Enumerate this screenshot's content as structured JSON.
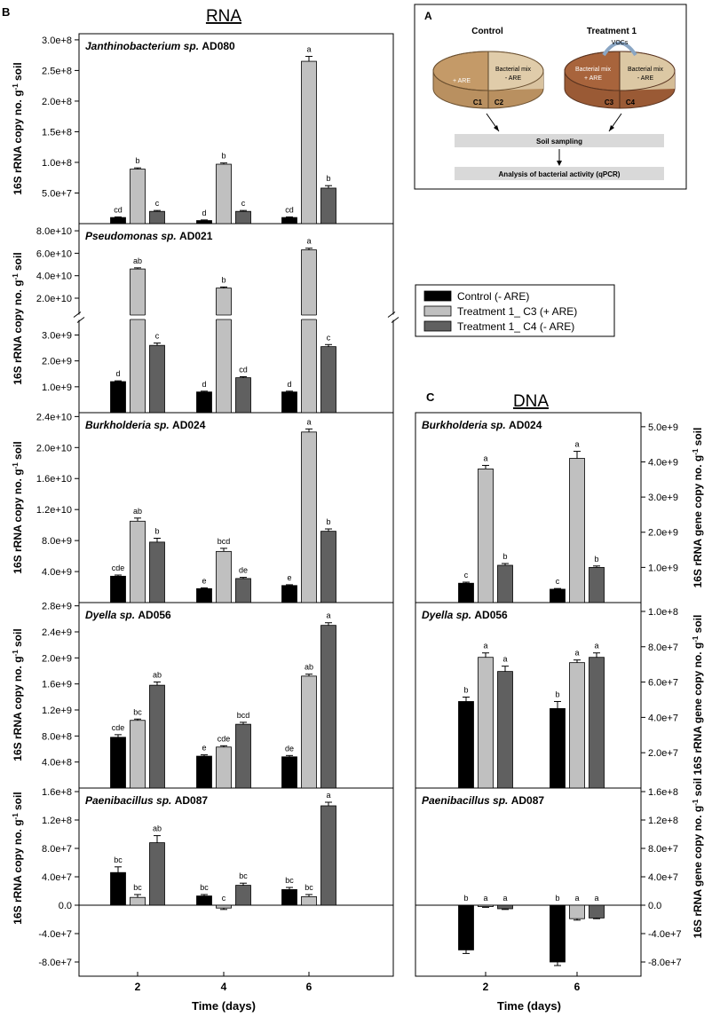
{
  "figure": {
    "panel_b_letter": "B",
    "panel_a_letter": "A",
    "panel_c_letter": "C",
    "rna_title": "RNA",
    "dna_title": "DNA",
    "x_label": "Time (days)",
    "ylabel_rna_prefix": "16S rRNA copy no. g",
    "ylabel_dna_prefix": "16S rRNA gene copy no. g",
    "ylabel_sup": "-1",
    "ylabel_suffix": " soil"
  },
  "legend": {
    "items": [
      {
        "label": "Control (- ARE)",
        "color": "#000000"
      },
      {
        "label": "Treatment 1_ C3 (+ ARE)",
        "color": "#c0c0c0"
      },
      {
        "label": "Treatment 1_ C4 (- ARE)",
        "color": "#606060"
      }
    ]
  },
  "diagram": {
    "control_title": "Control",
    "treatment_title": "Treatment 1",
    "vocs_label": "VOCs",
    "c1_label": "C1",
    "c2_label": "C2",
    "c3_label": "C3",
    "c4_label": "C4",
    "plus_are": "+ ARE",
    "bacterial_mix": "Bacterial mix",
    "minus_are": "- ARE",
    "soil_sampling": "Soil sampling",
    "analysis": "Analysis of bacterial activity (qPCR)"
  },
  "chart_data": [
    {
      "type": "bar",
      "panel": "RNA",
      "organism": "Janthinobacterium sp.",
      "strain": "AD080",
      "categories": [
        "2",
        "4",
        "6"
      ],
      "ylim": [
        0,
        310000000.0
      ],
      "yticks": [
        50000000.0,
        100000000.0,
        150000000.0,
        200000000.0,
        250000000.0,
        300000000.0
      ],
      "ytick_labels": [
        "5.0e+7",
        "1.0e+8",
        "1.5e+8",
        "2.0e+8",
        "2.5e+8",
        "3.0e+8"
      ],
      "series": [
        {
          "name": "Control (- ARE)",
          "values": [
            10000000.0,
            5000000.0,
            10000000.0
          ],
          "errors": [
            1000000.0,
            1000000.0,
            1000000.0
          ],
          "letters": [
            "cd",
            "d",
            "cd"
          ]
        },
        {
          "name": "Treatment 1_ C3 (+ ARE)",
          "values": [
            89000000.0,
            97000000.0,
            265000000.0
          ],
          "errors": [
            2000000.0,
            2000000.0,
            8000000.0
          ],
          "letters": [
            "b",
            "b",
            "a"
          ]
        },
        {
          "name": "Treatment 1_ C4 (- ARE)",
          "values": [
            20000000.0,
            20000000.0,
            58000000.0
          ],
          "errors": [
            1500000.0,
            1500000.0,
            4000000.0
          ],
          "letters": [
            "c",
            "c",
            "b"
          ]
        }
      ]
    },
    {
      "type": "bar",
      "panel": "RNA",
      "organism": "Pseudomonas sp.",
      "strain": "AD021",
      "categories": [
        "2",
        "4",
        "6"
      ],
      "broken_axis": true,
      "lower_range": [
        0,
        3600000000.0
      ],
      "upper_range": [
        5000000000.0,
        84000000000.0
      ],
      "lower_ticks": [
        1000000000.0,
        2000000000.0,
        3000000000.0
      ],
      "lower_tick_labels": [
        "1.0e+9",
        "2.0e+9",
        "3.0e+9"
      ],
      "upper_ticks": [
        20000000000.0,
        40000000000.0,
        60000000000.0,
        80000000000.0
      ],
      "upper_tick_labels": [
        "2.0e+10",
        "4.0e+10",
        "6.0e+10",
        "8.0e+10"
      ],
      "series": [
        {
          "name": "Control (- ARE)",
          "values": [
            1200000000.0,
            800000000.0,
            800000000.0
          ],
          "errors": [
            30000000.0,
            30000000.0,
            30000000.0
          ],
          "letters": [
            "d",
            "d",
            "d"
          ]
        },
        {
          "name": "Treatment 1_ C3 (+ ARE)",
          "values": [
            46000000000.0,
            29000000000.0,
            63000000000.0
          ],
          "errors": [
            1000000000.0,
            1000000000.0,
            1500000000.0
          ],
          "letters": [
            "ab",
            "b",
            "a"
          ]
        },
        {
          "name": "Treatment 1_ C4 (- ARE)",
          "values": [
            2600000000.0,
            1350000000.0,
            2550000000.0
          ],
          "errors": [
            90000000.0,
            40000000.0,
            80000000.0
          ],
          "letters": [
            "c",
            "cd",
            "c"
          ]
        }
      ]
    },
    {
      "type": "bar",
      "panel": "RNA",
      "organism": "Burkholderia sp.",
      "strain": "AD024",
      "categories": [
        "2",
        "4",
        "6"
      ],
      "ylim": [
        0,
        24500000000.0
      ],
      "yticks": [
        4000000000.0,
        8000000000.0,
        12000000000.0,
        16000000000.0,
        20000000000.0,
        24000000000.0
      ],
      "ytick_labels": [
        "4.0e+9",
        "8.0e+9",
        "1.2e+10",
        "1.6e+10",
        "2.0e+10",
        "2.4e+10"
      ],
      "series": [
        {
          "name": "Control (- ARE)",
          "values": [
            3400000000.0,
            1800000000.0,
            2200000000.0
          ],
          "errors": [
            150000000.0,
            100000000.0,
            100000000.0
          ],
          "letters": [
            "cde",
            "e",
            "e"
          ]
        },
        {
          "name": "Treatment 1_ C3 (+ ARE)",
          "values": [
            10500000000.0,
            6600000000.0,
            22000000000.0
          ],
          "errors": [
            400000000.0,
            400000000.0,
            400000000.0
          ],
          "letters": [
            "ab",
            "bcd",
            "a"
          ]
        },
        {
          "name": "Treatment 1_ C4 (- ARE)",
          "values": [
            7800000000.0,
            3100000000.0,
            9200000000.0
          ],
          "errors": [
            500000000.0,
            150000000.0,
            300000000.0
          ],
          "letters": [
            "b",
            "de",
            "b"
          ]
        }
      ]
    },
    {
      "type": "bar",
      "panel": "RNA",
      "organism": "Dyella sp.",
      "strain": "AD056",
      "categories": [
        "2",
        "4",
        "6"
      ],
      "ylim": [
        0,
        2850000000.0
      ],
      "yticks": [
        400000000.0,
        800000000.0,
        1200000000.0,
        1600000000.0,
        2000000000.0,
        2400000000.0,
        2800000000.0
      ],
      "ytick_labels": [
        "4.0e+8",
        "8.0e+8",
        "1.2e+9",
        "1.6e+9",
        "2.0e+9",
        "2.4e+9",
        "2.8e+9"
      ],
      "series": [
        {
          "name": "Control (- ARE)",
          "values": [
            780000000.0,
            490000000.0,
            480000000.0
          ],
          "errors": [
            40000000.0,
            20000000.0,
            20000000.0
          ],
          "letters": [
            "cde",
            "e",
            "de"
          ]
        },
        {
          "name": "Treatment 1_ C3 (+ ARE)",
          "values": [
            1040000000.0,
            630000000.0,
            1720000000.0
          ],
          "errors": [
            20000000.0,
            20000000.0,
            30000000.0
          ],
          "letters": [
            "bc",
            "cde",
            "ab"
          ]
        },
        {
          "name": "Treatment 1_ C4 (- ARE)",
          "values": [
            1580000000.0,
            980000000.0,
            2500000000.0
          ],
          "errors": [
            50000000.0,
            30000000.0,
            40000000.0
          ],
          "letters": [
            "ab",
            "bcd",
            "a"
          ]
        }
      ]
    },
    {
      "type": "bar",
      "panel": "RNA",
      "organism": "Paenibacillus sp.",
      "strain": "AD087",
      "categories": [
        "2",
        "4",
        "6"
      ],
      "ylim": [
        -100000000.0,
        165000000.0
      ],
      "yticks": [
        -80000000.0,
        -40000000.0,
        0,
        40000000.0,
        80000000.0,
        120000000.0,
        160000000.0
      ],
      "ytick_labels": [
        "-8.0e+7",
        "-4.0e+7",
        "0.0",
        "4.0e+7",
        "8.0e+7",
        "1.2e+8",
        "1.6e+8"
      ],
      "series": [
        {
          "name": "Control (- ARE)",
          "values": [
            46000000.0,
            13000000.0,
            22000000.0
          ],
          "errors": [
            8000000.0,
            2000000.0,
            3000000.0
          ],
          "letters": [
            "bc",
            "bc",
            "bc"
          ]
        },
        {
          "name": "Treatment 1_ C3 (+ ARE)",
          "values": [
            11000000.0,
            -4000000.0,
            12000000.0
          ],
          "errors": [
            4000000.0,
            2000000.0,
            3000000.0
          ],
          "letters": [
            "bc",
            "c",
            "bc"
          ]
        },
        {
          "name": "Treatment 1_ C4 (- ARE)",
          "values": [
            88000000.0,
            28000000.0,
            140000000.0
          ],
          "errors": [
            10000000.0,
            3000000.0,
            5000000.0
          ],
          "letters": [
            "ab",
            "bc",
            "a"
          ]
        }
      ]
    },
    {
      "type": "bar",
      "panel": "DNA",
      "organism": "Burkholderia sp.",
      "strain": "AD024",
      "categories": [
        "2",
        "6"
      ],
      "ylim": [
        0,
        5400000000.0
      ],
      "yticks": [
        1000000000.0,
        2000000000.0,
        3000000000.0,
        4000000000.0,
        5000000000.0
      ],
      "ytick_labels": [
        "1.0e+9",
        "2.0e+9",
        "3.0e+9",
        "4.0e+9",
        "5.0e+9"
      ],
      "series": [
        {
          "name": "Control (- ARE)",
          "values": [
            550000000.0,
            380000000.0
          ],
          "errors": [
            30000000.0,
            20000000.0
          ],
          "letters": [
            "c",
            "c"
          ]
        },
        {
          "name": "Treatment 1_ C3 (+ ARE)",
          "values": [
            3800000000.0,
            4100000000.0
          ],
          "errors": [
            100000000.0,
            200000000.0
          ],
          "letters": [
            "a",
            "a"
          ]
        },
        {
          "name": "Treatment 1_ C4 (- ARE)",
          "values": [
            1060000000.0,
            1000000000.0
          ],
          "errors": [
            50000000.0,
            40000000.0
          ],
          "letters": [
            "b",
            "b"
          ]
        }
      ]
    },
    {
      "type": "bar",
      "panel": "DNA",
      "organism": "Dyella sp.",
      "strain": "AD056",
      "categories": [
        "2",
        "6"
      ],
      "ylim": [
        0,
        105000000.0
      ],
      "yticks": [
        20000000.0,
        40000000.0,
        60000000.0,
        80000000.0,
        100000000.0
      ],
      "ytick_labels": [
        "2.0e+7",
        "4.0e+7",
        "6.0e+7",
        "8.0e+7",
        "1.0e+8"
      ],
      "series": [
        {
          "name": "Control (- ARE)",
          "values": [
            49000000.0,
            45000000.0
          ],
          "errors": [
            2500000.0,
            4000000.0
          ],
          "letters": [
            "b",
            "b"
          ]
        },
        {
          "name": "Treatment 1_ C3 (+ ARE)",
          "values": [
            74000000.0,
            71000000.0
          ],
          "errors": [
            2500000.0,
            1500000.0
          ],
          "letters": [
            "a",
            "a"
          ]
        },
        {
          "name": "Treatment 1_ C4 (- ARE)",
          "values": [
            66000000.0,
            74000000.0
          ],
          "errors": [
            3000000.0,
            2500000.0
          ],
          "letters": [
            "a",
            "a"
          ]
        }
      ]
    },
    {
      "type": "bar",
      "panel": "DNA",
      "organism": "Paenibacillus sp.",
      "strain": "AD087",
      "categories": [
        "2",
        "6"
      ],
      "ylim": [
        -100000000.0,
        165000000.0
      ],
      "yticks": [
        -80000000.0,
        -40000000.0,
        0,
        40000000.0,
        80000000.0,
        120000000.0,
        160000000.0
      ],
      "ytick_labels": [
        "-8.0e+7",
        "-4.0e+7",
        "0.0",
        "4.0e+7",
        "8.0e+7",
        "1.2e+8",
        "1.6e+8"
      ],
      "series": [
        {
          "name": "Control (- ARE)",
          "values": [
            -63000000.0,
            -80000000.0
          ],
          "errors": [
            5000000.0,
            5000000.0
          ],
          "letters": [
            "b",
            "b"
          ]
        },
        {
          "name": "Treatment 1_ C3 (+ ARE)",
          "values": [
            -2000000.0,
            -19000000.0
          ],
          "errors": [
            1000000.0,
            2000000.0
          ],
          "letters": [
            "a",
            "a"
          ]
        },
        {
          "name": "Treatment 1_ C4 (- ARE)",
          "values": [
            -5000000.0,
            -18000000.0
          ],
          "errors": [
            1000000.0,
            1000000.0
          ],
          "letters": [
            "a",
            "a"
          ]
        }
      ]
    }
  ]
}
